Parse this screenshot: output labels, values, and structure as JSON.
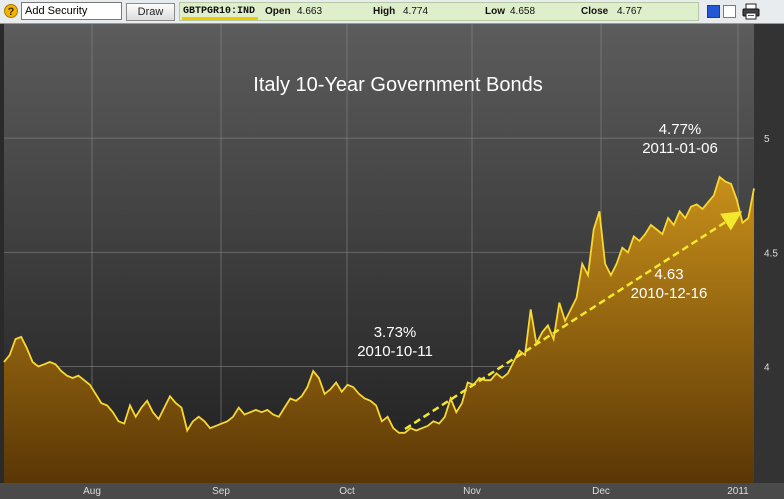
{
  "toolbar": {
    "help_icon": "?",
    "add_security_value": "Add Security",
    "draw_label": "Draw",
    "ticker": "GBTPGR10:IND",
    "open_label": "Open",
    "open_value": "4.663",
    "high_label": "High",
    "high_value": "4.774",
    "low_label": "Low",
    "low_value": "4.658",
    "close_label": "Close",
    "close_value": "4.767",
    "icons": [
      "help-icon",
      "blue-swatch-icon",
      "white-swatch-icon",
      "printer-icon"
    ]
  },
  "chart_data": {
    "type": "area",
    "title": "Italy 10-Year Government Bonds",
    "y_ticks": [
      "4",
      "4.5",
      "5"
    ],
    "x_ticks": [
      "Aug",
      "Sep",
      "Oct",
      "Nov",
      "Dec",
      "2011"
    ],
    "ylim": [
      3.49,
      5.5
    ],
    "grid": true,
    "colors": {
      "line": "#f7d730",
      "fill_top": "#c8901a",
      "fill_bottom": "#5a3605",
      "trend": "#f2e82e",
      "background_top": "#5c5c5c",
      "background_bottom": "#1f1f1f"
    },
    "series": [
      {
        "values": [
          4.02,
          4.05,
          4.12,
          4.13,
          4.08,
          4.02,
          4.0,
          4.01,
          4.02,
          4.01,
          3.98,
          3.96,
          3.95,
          3.96,
          3.94,
          3.92,
          3.88,
          3.84,
          3.83,
          3.8,
          3.76,
          3.75,
          3.83,
          3.78,
          3.82,
          3.85,
          3.8,
          3.77,
          3.82,
          3.87,
          3.84,
          3.82,
          3.72,
          3.76,
          3.78,
          3.76,
          3.73,
          3.74,
          3.75,
          3.76,
          3.78,
          3.82,
          3.79,
          3.8,
          3.81,
          3.8,
          3.81,
          3.79,
          3.78,
          3.82,
          3.86,
          3.85,
          3.87,
          3.91,
          3.98,
          3.95,
          3.88,
          3.9,
          3.93,
          3.89,
          3.92,
          3.91,
          3.88,
          3.86,
          3.85,
          3.83,
          3.76,
          3.78,
          3.73,
          3.71,
          3.71,
          3.73,
          3.72,
          3.73,
          3.74,
          3.76,
          3.75,
          3.78,
          3.86,
          3.8,
          3.84,
          3.93,
          3.92,
          3.95,
          3.94,
          3.94,
          3.97,
          3.95,
          3.97,
          4.02,
          4.07,
          4.05,
          4.25,
          4.1,
          4.15,
          4.18,
          4.12,
          4.28,
          4.2,
          4.25,
          4.3,
          4.45,
          4.4,
          4.6,
          4.68,
          4.45,
          4.4,
          4.45,
          4.52,
          4.5,
          4.57,
          4.55,
          4.58,
          4.62,
          4.6,
          4.58,
          4.65,
          4.62,
          4.68,
          4.65,
          4.7,
          4.71,
          4.69,
          4.72,
          4.75,
          4.83,
          4.81,
          4.8,
          4.73,
          4.63,
          4.65,
          4.78
        ]
      }
    ],
    "annotations": [
      {
        "value": "3.73%",
        "date": "2010-10-11"
      },
      {
        "value": "4.63",
        "date": "2010-12-16"
      },
      {
        "value": "4.77%",
        "date": "2011-01-06"
      }
    ]
  }
}
